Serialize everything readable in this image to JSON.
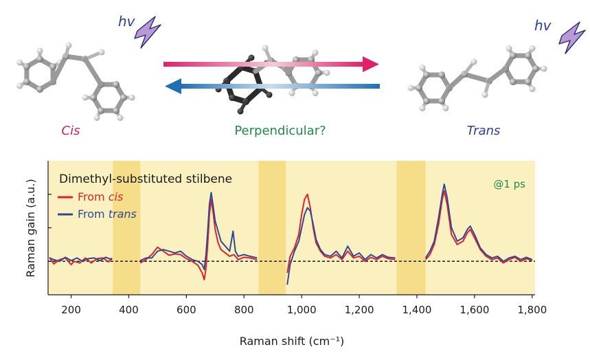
{
  "labels": {
    "hv": "hv",
    "cis": "Cis",
    "trans": "Trans",
    "perpendicular": "Perpendicular?"
  },
  "colors": {
    "cis": "#d0205a",
    "trans": "#2b3d8f",
    "perpendicular": "#1f8a4c",
    "lightning": "#b89ad6",
    "panel_bg": "#faf0c0",
    "band_bg": "#f6dd8a"
  },
  "chart_data": {
    "type": "line",
    "annotation": "Dimethyl-substituted stilbene",
    "time_label": "@1 ps",
    "xlabel": "Raman shift (cm⁻¹)",
    "ylabel": "Raman gain (a.u.)",
    "xlim": [
      120,
      1810
    ],
    "ylim": [
      -1.0,
      3.0
    ],
    "grid": false,
    "legend_position": "top-left",
    "x_ticks": [
      {
        "value": 200,
        "label": "200"
      },
      {
        "value": 400,
        "label": "400"
      },
      {
        "value": 600,
        "label": "600"
      },
      {
        "value": 800,
        "label": "800"
      },
      {
        "value": 1000,
        "label": "1,000"
      },
      {
        "value": 1200,
        "label": "1,200"
      },
      {
        "value": 1400,
        "label": "1,400"
      },
      {
        "value": 1600,
        "label": "1,600"
      },
      {
        "value": 1800,
        "label": "1,800"
      }
    ],
    "shaded_regions": [
      [
        345,
        440
      ],
      [
        850,
        945
      ],
      [
        1330,
        1430
      ]
    ],
    "series": [
      {
        "name": "From cis",
        "color": "#e0202a",
        "segments": [
          [
            [
              125,
              0.12
            ],
            [
              140,
              -0.08
            ],
            [
              160,
              0.05
            ],
            [
              180,
              0.1
            ],
            [
              200,
              -0.1
            ],
            [
              210,
              0.0
            ],
            [
              230,
              -0.05
            ],
            [
              250,
              0.1
            ],
            [
              270,
              -0.05
            ],
            [
              290,
              0.08
            ],
            [
              310,
              0.1
            ],
            [
              330,
              -0.02
            ],
            [
              342,
              0.1
            ]
          ],
          [
            [
              440,
              -0.05
            ],
            [
              460,
              0.05
            ],
            [
              480,
              0.2
            ],
            [
              500,
              0.42
            ],
            [
              520,
              0.3
            ],
            [
              540,
              0.18
            ],
            [
              560,
              0.22
            ],
            [
              580,
              0.2
            ],
            [
              600,
              0.08
            ],
            [
              620,
              0.0
            ],
            [
              640,
              -0.12
            ],
            [
              655,
              -0.35
            ],
            [
              662,
              -0.55
            ],
            [
              668,
              -0.2
            ],
            [
              674,
              0.5
            ],
            [
              680,
              1.4
            ],
            [
              686,
              1.85
            ],
            [
              692,
              1.5
            ],
            [
              700,
              0.95
            ],
            [
              710,
              0.55
            ],
            [
              720,
              0.35
            ],
            [
              735,
              0.25
            ],
            [
              750,
              0.15
            ],
            [
              765,
              0.2
            ],
            [
              780,
              0.05
            ],
            [
              800,
              0.12
            ],
            [
              820,
              0.1
            ],
            [
              845,
              0.05
            ]
          ],
          [
            [
              950,
              -0.35
            ],
            [
              960,
              0.15
            ],
            [
              975,
              0.4
            ],
            [
              990,
              0.8
            ],
            [
              1000,
              1.4
            ],
            [
              1010,
              1.85
            ],
            [
              1020,
              2.0
            ],
            [
              1030,
              1.6
            ],
            [
              1040,
              1.0
            ],
            [
              1050,
              0.55
            ],
            [
              1065,
              0.3
            ],
            [
              1080,
              0.15
            ],
            [
              1100,
              0.1
            ],
            [
              1120,
              0.2
            ],
            [
              1140,
              0.05
            ],
            [
              1160,
              0.3
            ],
            [
              1180,
              0.1
            ],
            [
              1200,
              0.15
            ],
            [
              1220,
              0.0
            ],
            [
              1240,
              0.12
            ],
            [
              1260,
              0.05
            ],
            [
              1280,
              0.15
            ],
            [
              1300,
              0.08
            ],
            [
              1325,
              0.05
            ]
          ],
          [
            [
              1430,
              0.05
            ],
            [
              1445,
              0.2
            ],
            [
              1460,
              0.5
            ],
            [
              1475,
              1.1
            ],
            [
              1488,
              1.85
            ],
            [
              1495,
              2.1
            ],
            [
              1505,
              1.7
            ],
            [
              1520,
              0.8
            ],
            [
              1540,
              0.5
            ],
            [
              1560,
              0.6
            ],
            [
              1575,
              0.85
            ],
            [
              1585,
              0.95
            ],
            [
              1600,
              0.7
            ],
            [
              1620,
              0.35
            ],
            [
              1640,
              0.15
            ],
            [
              1660,
              0.05
            ],
            [
              1680,
              0.1
            ],
            [
              1700,
              -0.05
            ],
            [
              1720,
              0.05
            ],
            [
              1740,
              0.12
            ],
            [
              1760,
              0.0
            ],
            [
              1780,
              0.08
            ],
            [
              1800,
              0.02
            ]
          ]
        ]
      },
      {
        "name": "From trans",
        "color": "#2a4a96",
        "segments": [
          [
            [
              125,
              0.1
            ],
            [
              140,
              0.05
            ],
            [
              160,
              0.0
            ],
            [
              180,
              0.12
            ],
            [
              200,
              0.02
            ],
            [
              220,
              0.1
            ],
            [
              240,
              0.0
            ],
            [
              260,
              0.08
            ],
            [
              280,
              0.1
            ],
            [
              300,
              0.02
            ],
            [
              320,
              0.12
            ],
            [
              342,
              0.05
            ]
          ],
          [
            [
              440,
              0.02
            ],
            [
              460,
              0.1
            ],
            [
              480,
              0.1
            ],
            [
              500,
              0.3
            ],
            [
              520,
              0.35
            ],
            [
              540,
              0.3
            ],
            [
              560,
              0.25
            ],
            [
              580,
              0.3
            ],
            [
              600,
              0.15
            ],
            [
              620,
              0.05
            ],
            [
              640,
              0.0
            ],
            [
              655,
              -0.1
            ],
            [
              662,
              -0.25
            ],
            [
              668,
              0.2
            ],
            [
              674,
              0.9
            ],
            [
              680,
              1.7
            ],
            [
              686,
              2.05
            ],
            [
              692,
              1.7
            ],
            [
              700,
              1.2
            ],
            [
              710,
              0.9
            ],
            [
              720,
              0.6
            ],
            [
              735,
              0.45
            ],
            [
              750,
              0.3
            ],
            [
              762,
              0.9
            ],
            [
              770,
              0.3
            ],
            [
              780,
              0.15
            ],
            [
              800,
              0.2
            ],
            [
              820,
              0.15
            ],
            [
              845,
              0.1
            ]
          ],
          [
            [
              950,
              -0.7
            ],
            [
              960,
              -0.1
            ],
            [
              975,
              0.3
            ],
            [
              990,
              0.6
            ],
            [
              1000,
              1.0
            ],
            [
              1010,
              1.4
            ],
            [
              1020,
              1.6
            ],
            [
              1030,
              1.5
            ],
            [
              1040,
              1.1
            ],
            [
              1050,
              0.65
            ],
            [
              1065,
              0.35
            ],
            [
              1080,
              0.2
            ],
            [
              1100,
              0.15
            ],
            [
              1120,
              0.3
            ],
            [
              1140,
              0.1
            ],
            [
              1160,
              0.45
            ],
            [
              1180,
              0.15
            ],
            [
              1200,
              0.25
            ],
            [
              1220,
              0.05
            ],
            [
              1240,
              0.2
            ],
            [
              1260,
              0.1
            ],
            [
              1280,
              0.2
            ],
            [
              1300,
              0.12
            ],
            [
              1325,
              0.1
            ]
          ],
          [
            [
              1430,
              0.1
            ],
            [
              1445,
              0.3
            ],
            [
              1460,
              0.6
            ],
            [
              1475,
              1.3
            ],
            [
              1488,
              2.0
            ],
            [
              1495,
              2.3
            ],
            [
              1505,
              1.9
            ],
            [
              1520,
              1.0
            ],
            [
              1540,
              0.6
            ],
            [
              1560,
              0.7
            ],
            [
              1575,
              0.95
            ],
            [
              1585,
              1.05
            ],
            [
              1600,
              0.8
            ],
            [
              1620,
              0.4
            ],
            [
              1640,
              0.2
            ],
            [
              1660,
              0.1
            ],
            [
              1680,
              0.15
            ],
            [
              1700,
              0.0
            ],
            [
              1720,
              0.1
            ],
            [
              1740,
              0.15
            ],
            [
              1760,
              0.05
            ],
            [
              1780,
              0.12
            ],
            [
              1800,
              0.05
            ]
          ]
        ]
      }
    ],
    "baseline": 0
  }
}
